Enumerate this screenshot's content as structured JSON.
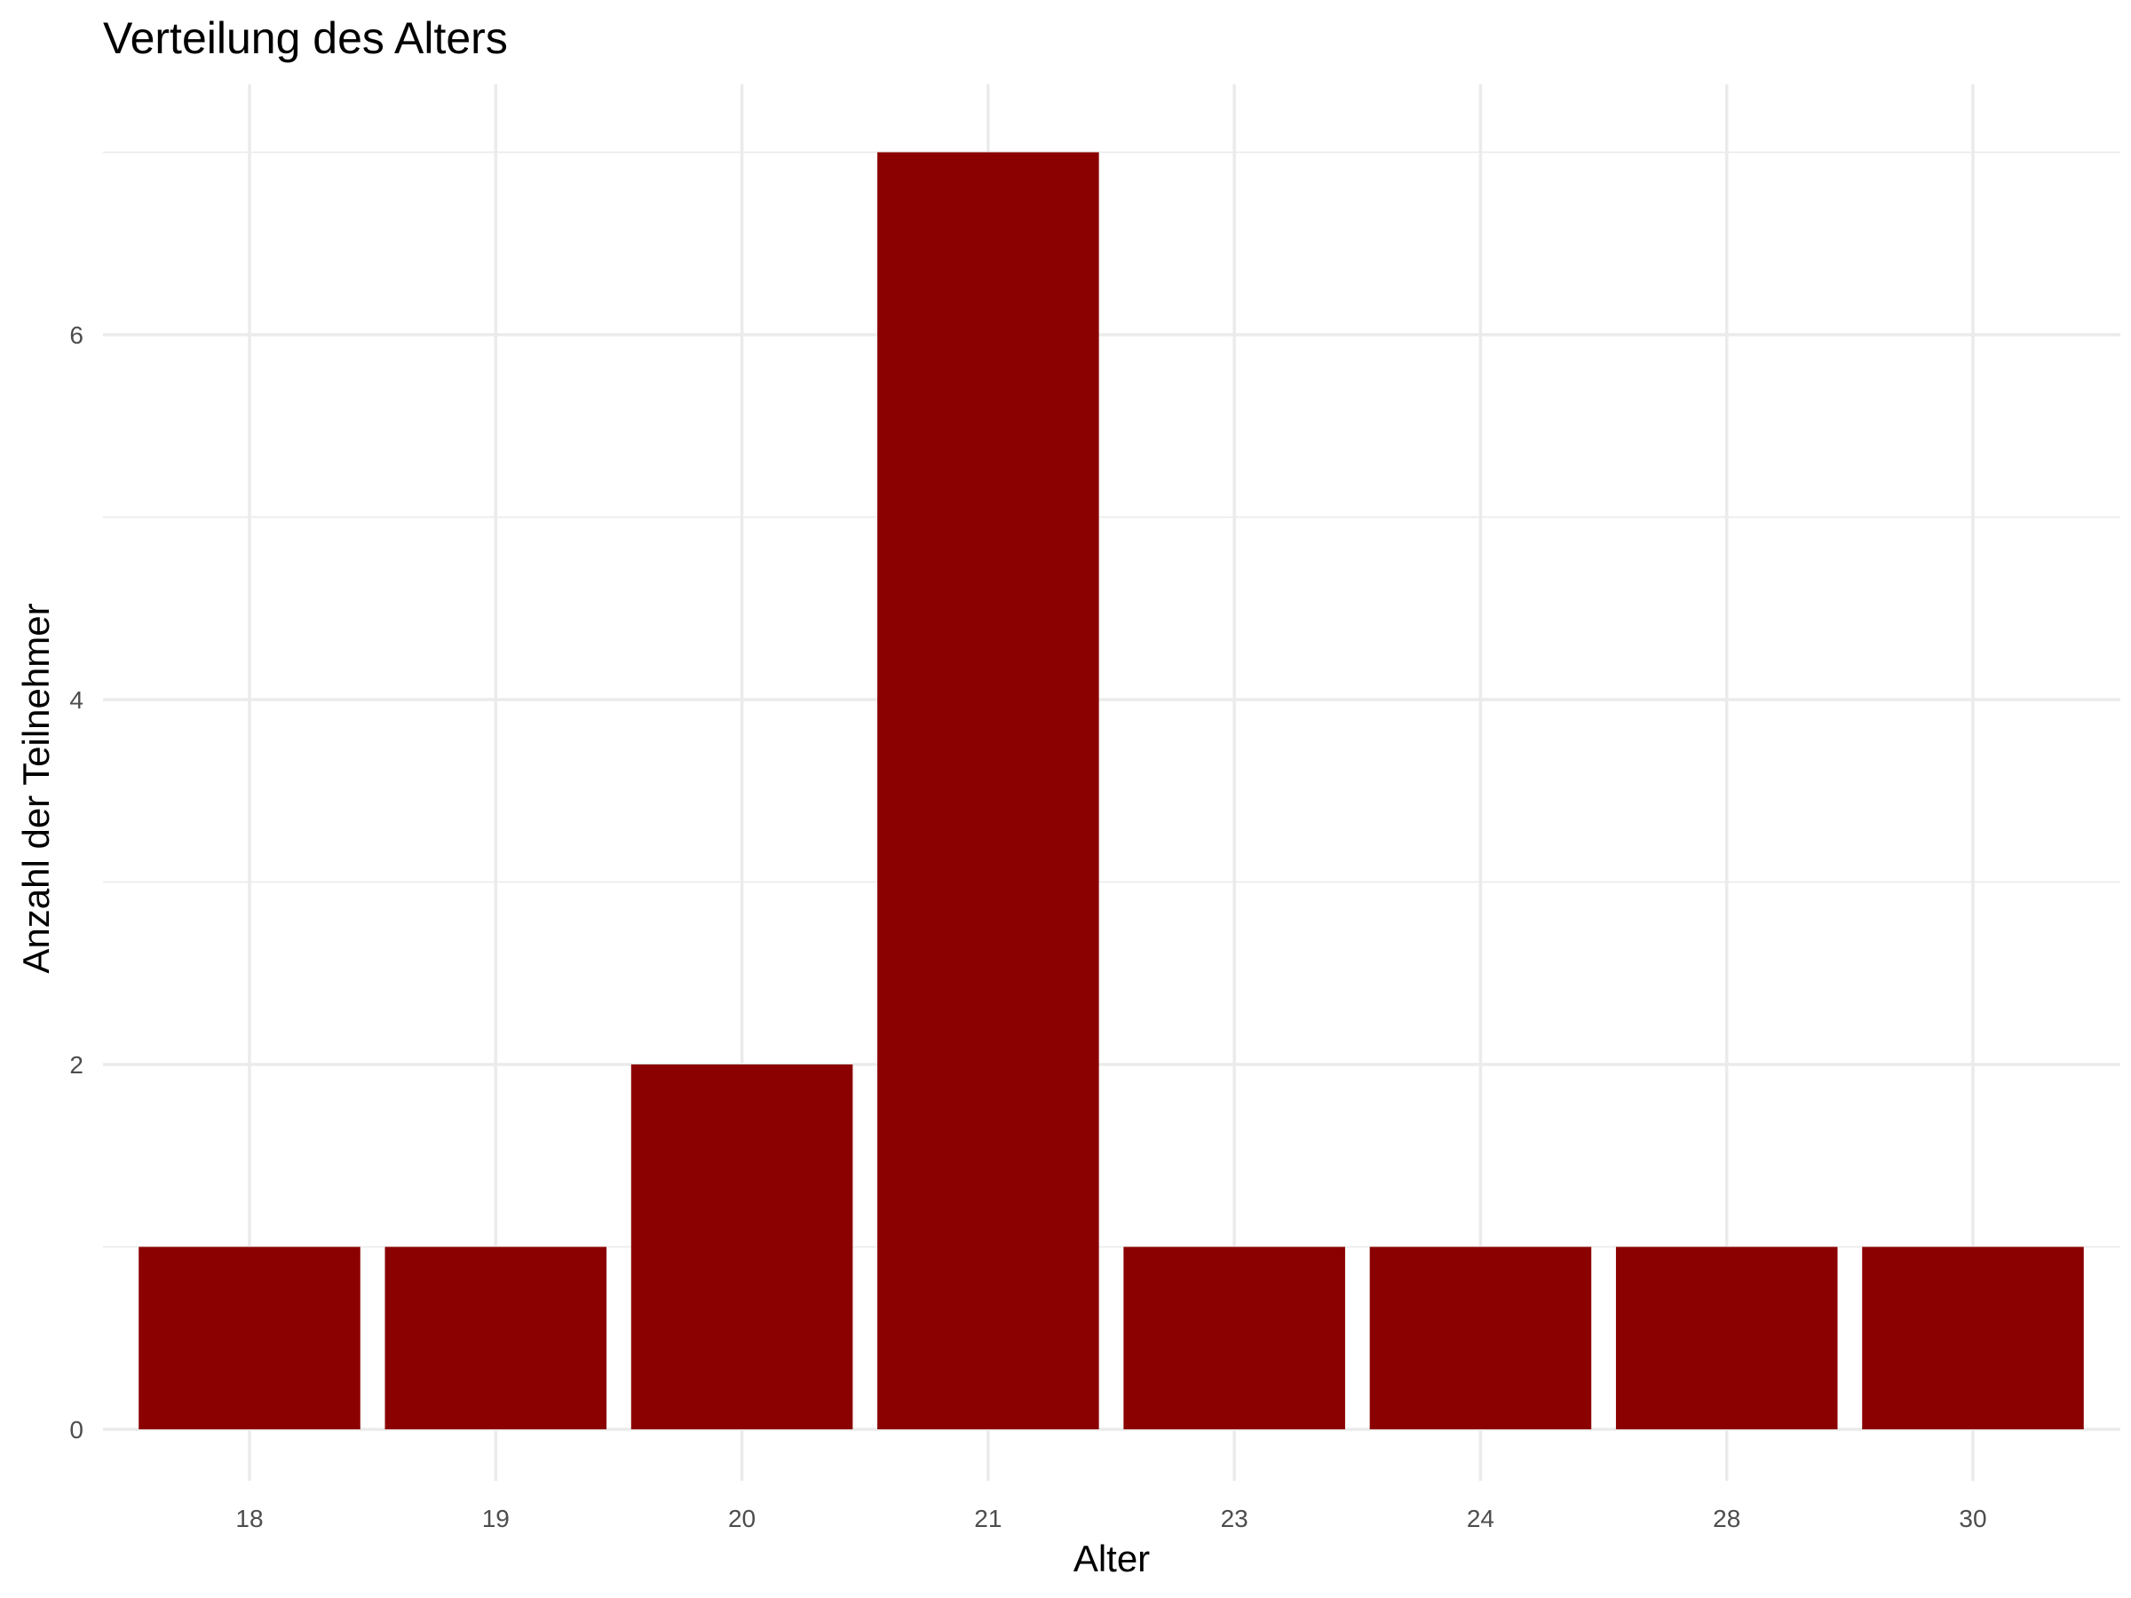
{
  "chart_data": {
    "type": "bar",
    "title": "Verteilung des Alters",
    "xlabel": "Alter",
    "ylabel": "Anzahl der Teilnehmer",
    "categories": [
      "18",
      "19",
      "20",
      "21",
      "23",
      "24",
      "28",
      "30"
    ],
    "values": [
      1,
      1,
      2,
      7,
      1,
      1,
      1,
      1
    ],
    "y_ticks": [
      "0",
      "2",
      "4",
      "6"
    ],
    "y_tick_values": [
      0,
      2,
      4,
      6
    ],
    "y_minor_values": [
      1,
      3,
      5,
      7
    ],
    "ylim": [
      0,
      7
    ],
    "grid": true,
    "legend": "none",
    "colors": {
      "bar": "#8B0000",
      "grid": "#EBEBEB",
      "tick_text": "#4D4D4D",
      "text": "#000000"
    }
  }
}
